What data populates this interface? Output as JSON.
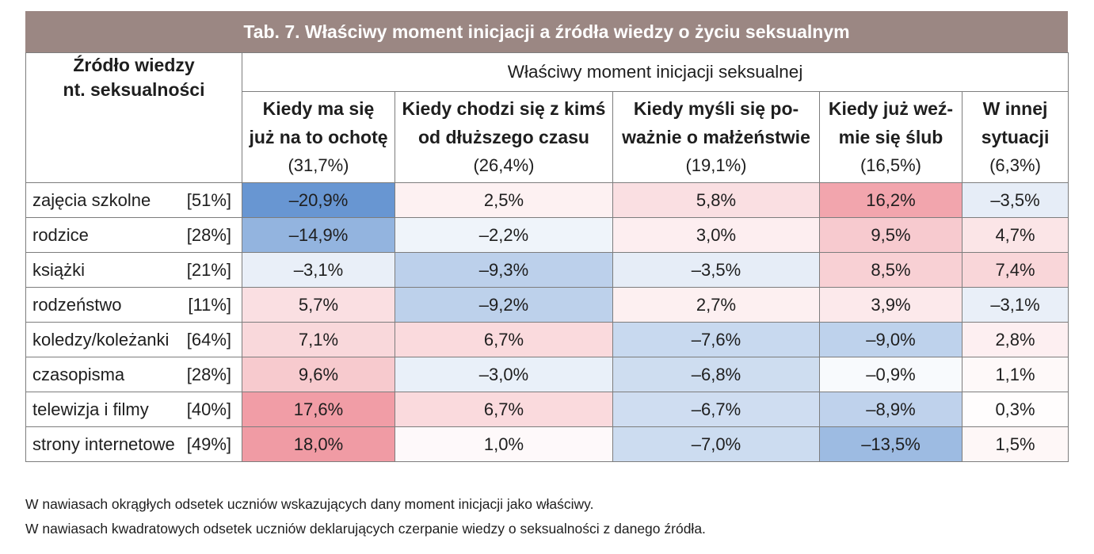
{
  "chart_data": {
    "type": "table",
    "title": "Tab. 7. Właściwy moment inicjacji a źródła wiedzy o życiu seksualnym",
    "row_header": [
      "Źródło wiedzy",
      "nt. seksualności"
    ],
    "column_group": "Właściwy moment inicjacji seksualnej",
    "columns": [
      {
        "lines": [
          "Kiedy ma się",
          "już na to ochotę"
        ],
        "share": "(31,7%)"
      },
      {
        "lines": [
          "Kiedy chodzi się z kimś",
          "od dłuższego czasu"
        ],
        "share": "(26,4%)"
      },
      {
        "lines": [
          "Kiedy myśli się po-",
          "ważnie o małżeństwie"
        ],
        "share": "(19,1%)"
      },
      {
        "lines": [
          "Kiedy już weź-",
          "mie się ślub"
        ],
        "share": "(16,5%)"
      },
      {
        "lines": [
          "W innej",
          "sytuacji"
        ],
        "share": "(6,3%)"
      }
    ],
    "rows": [
      {
        "label": "zajęcia szkolne",
        "share": "[51%]",
        "cells": [
          "–20,9%",
          "2,5%",
          "5,8%",
          "16,2%",
          "–3,5%"
        ],
        "values": [
          -20.9,
          2.5,
          5.8,
          16.2,
          -3.5
        ]
      },
      {
        "label": "rodzice",
        "share": "[28%]",
        "cells": [
          "–14,9%",
          "–2,2%",
          "3,0%",
          "9,5%",
          "4,7%"
        ],
        "values": [
          -14.9,
          -2.2,
          3.0,
          9.5,
          4.7
        ]
      },
      {
        "label": "książki",
        "share": "[21%]",
        "cells": [
          "–3,1%",
          "–9,3%",
          "–3,5%",
          "8,5%",
          "7,4%"
        ],
        "values": [
          -3.1,
          -9.3,
          -3.5,
          8.5,
          7.4
        ]
      },
      {
        "label": "rodzeństwo",
        "share": "[11%]",
        "cells": [
          "5,7%",
          "–9,2%",
          "2,7%",
          "3,9%",
          "–3,1%"
        ],
        "values": [
          5.7,
          -9.2,
          2.7,
          3.9,
          -3.1
        ]
      },
      {
        "label": "koledzy/koleżanki",
        "share": "[64%]",
        "cells": [
          "7,1%",
          "6,7%",
          "–7,6%",
          "–9,0%",
          "2,8%"
        ],
        "values": [
          7.1,
          6.7,
          -7.6,
          -9.0,
          2.8
        ]
      },
      {
        "label": "czasopisma",
        "share": "[28%]",
        "cells": [
          "9,6%",
          "–3,0%",
          "–6,8%",
          "–0,9%",
          "1,1%"
        ],
        "values": [
          9.6,
          -3.0,
          -6.8,
          -0.9,
          1.1
        ]
      },
      {
        "label": "telewizja i filmy",
        "share": "[40%]",
        "cells": [
          "17,6%",
          "6,7%",
          "–6,7%",
          "–8,9%",
          "0,3%"
        ],
        "values": [
          17.6,
          6.7,
          -6.7,
          -8.9,
          0.3
        ]
      },
      {
        "label": "strony internetowe",
        "share": "[49%]",
        "cells": [
          "18,0%",
          "1,0%",
          "–7,0%",
          "–13,5%",
          "1,5%"
        ],
        "values": [
          18.0,
          1.0,
          -7.0,
          -13.5,
          1.5
        ]
      }
    ],
    "notes": [
      "W nawiasach okrągłych odsetek uczniów wskazujących dany moment inicjacji jako właściwy.",
      "W nawiasach kwadratowych odsetek uczniów deklarujących czerpanie wiedzy o seksualności z danego źródła."
    ],
    "color_scale": {
      "negative": "#6896d2",
      "zero": "#ffffff",
      "positive": "#ee8b95"
    }
  },
  "colors": {
    "title_bar": "#9b8783",
    "title_text": "#ffffff"
  }
}
